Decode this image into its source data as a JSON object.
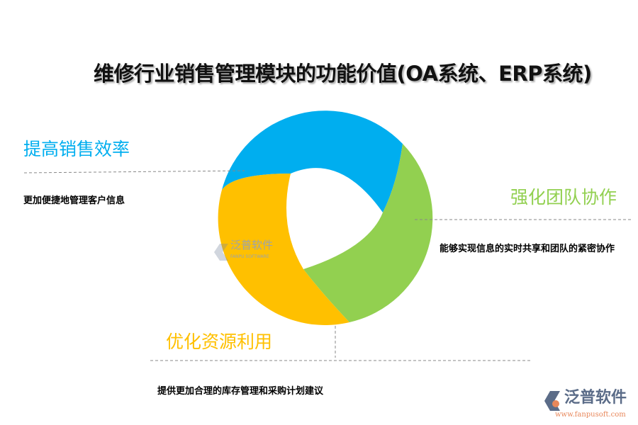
{
  "title": "维修行业销售管理模块的功能价值(OA系统、ERP系统)",
  "sections": [
    {
      "heading": "提高销售效率",
      "text": "更加便捷地管理客户信息",
      "color": "#00AEEF"
    },
    {
      "heading": "强化团队协作",
      "text": "能够实现信息的实时共享和团队的紧密协作",
      "color": "#92D050"
    },
    {
      "heading": "优化资源利用",
      "text": "提供更加合理的库存管理和采购计划建议",
      "color": "#FFC000"
    }
  ],
  "watermark": {
    "name": "泛普软件",
    "sub": "FANPU SOFTWARE"
  },
  "logo": {
    "name": "泛普软件",
    "url": "www.fanpusoft.com"
  }
}
